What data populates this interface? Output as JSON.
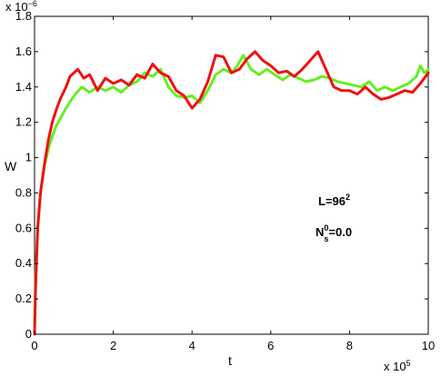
{
  "chart_data": {
    "type": "line",
    "title": "",
    "xlabel": "t",
    "ylabel": "W",
    "x_multiplier": "x 10",
    "x_multiplier_exp": "5",
    "y_multiplier": "x 10",
    "y_multiplier_exp": "−6",
    "xlim": [
      0,
      10
    ],
    "ylim": [
      0,
      1.8
    ],
    "x_ticks": [
      0,
      2,
      4,
      6,
      8,
      10
    ],
    "x_tick_labels": [
      "0",
      "2",
      "4",
      "6",
      "8",
      "10"
    ],
    "y_ticks": [
      0,
      0.2,
      0.4,
      0.6,
      0.8,
      1.0,
      1.2,
      1.4,
      1.6,
      1.8
    ],
    "y_tick_labels": [
      "0",
      "0.2",
      "0.4",
      "0.6",
      "0.8",
      "1",
      "1.2",
      "1.4",
      "1.6",
      "1.8"
    ],
    "grid": false,
    "legend": "none",
    "annotations": {
      "L_prefix": "L=96",
      "L_sup": "2",
      "N_main": "N",
      "N_sup": "0",
      "N_sub": "s",
      "N_value": "=0.0"
    },
    "series": [
      {
        "color": "#66ee22",
        "x": [
          0,
          0.03,
          0.08,
          0.15,
          0.25,
          0.35,
          0.45,
          0.55,
          0.65,
          0.8,
          1.0,
          1.2,
          1.4,
          1.6,
          1.8,
          2.0,
          2.2,
          2.4,
          2.6,
          2.8,
          3.0,
          3.2,
          3.4,
          3.6,
          3.8,
          4.0,
          4.2,
          4.4,
          4.6,
          4.8,
          5.0,
          5.15,
          5.3,
          5.5,
          5.7,
          5.9,
          6.1,
          6.3,
          6.5,
          6.7,
          6.9,
          7.1,
          7.3,
          7.5,
          7.7,
          7.9,
          8.1,
          8.3,
          8.5,
          8.7,
          8.9,
          9.1,
          9.3,
          9.5,
          9.7,
          9.8,
          9.9,
          10.0
        ],
        "y": [
          0.05,
          0.35,
          0.62,
          0.8,
          0.95,
          1.05,
          1.12,
          1.18,
          1.22,
          1.28,
          1.35,
          1.4,
          1.37,
          1.4,
          1.38,
          1.4,
          1.37,
          1.41,
          1.43,
          1.48,
          1.46,
          1.5,
          1.4,
          1.35,
          1.34,
          1.35,
          1.31,
          1.38,
          1.47,
          1.5,
          1.48,
          1.52,
          1.58,
          1.5,
          1.47,
          1.5,
          1.47,
          1.44,
          1.47,
          1.45,
          1.43,
          1.44,
          1.46,
          1.45,
          1.43,
          1.42,
          1.41,
          1.4,
          1.43,
          1.38,
          1.4,
          1.38,
          1.4,
          1.42,
          1.46,
          1.52,
          1.48,
          1.5
        ]
      },
      {
        "color": "#ee1111",
        "x": [
          0,
          0.03,
          0.08,
          0.15,
          0.25,
          0.35,
          0.45,
          0.55,
          0.65,
          0.8,
          0.9,
          1.0,
          1.1,
          1.25,
          1.4,
          1.6,
          1.8,
          2.0,
          2.2,
          2.4,
          2.6,
          2.8,
          3.0,
          3.2,
          3.4,
          3.6,
          3.8,
          4.0,
          4.2,
          4.4,
          4.6,
          4.8,
          5.0,
          5.2,
          5.4,
          5.6,
          5.8,
          6.0,
          6.2,
          6.4,
          6.6,
          6.8,
          7.0,
          7.2,
          7.4,
          7.6,
          7.8,
          8.0,
          8.2,
          8.4,
          8.6,
          8.8,
          9.0,
          9.2,
          9.4,
          9.6,
          9.8,
          10.0
        ],
        "y": [
          0.0,
          0.3,
          0.6,
          0.8,
          0.96,
          1.1,
          1.2,
          1.27,
          1.33,
          1.4,
          1.46,
          1.48,
          1.5,
          1.45,
          1.47,
          1.38,
          1.45,
          1.42,
          1.44,
          1.41,
          1.47,
          1.45,
          1.53,
          1.48,
          1.46,
          1.38,
          1.35,
          1.28,
          1.33,
          1.43,
          1.58,
          1.57,
          1.48,
          1.5,
          1.56,
          1.6,
          1.55,
          1.52,
          1.48,
          1.49,
          1.46,
          1.5,
          1.55,
          1.6,
          1.5,
          1.4,
          1.38,
          1.38,
          1.36,
          1.4,
          1.36,
          1.33,
          1.34,
          1.36,
          1.38,
          1.37,
          1.42,
          1.48
        ]
      }
    ]
  }
}
